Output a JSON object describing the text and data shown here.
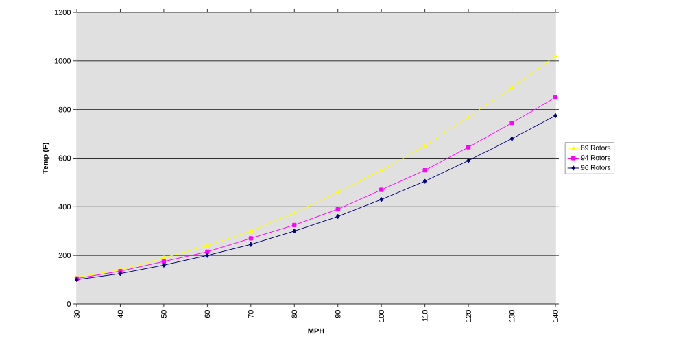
{
  "chart_data": {
    "type": "line",
    "xlabel": "MPH",
    "ylabel": "Temp (F)",
    "x": [
      30,
      40,
      50,
      60,
      70,
      80,
      90,
      100,
      110,
      120,
      130,
      140
    ],
    "xlim": [
      30,
      140
    ],
    "xticks": [
      30,
      40,
      50,
      60,
      70,
      80,
      90,
      100,
      110,
      120,
      130,
      140
    ],
    "ylim": [
      0,
      1200
    ],
    "yticks": [
      0,
      200,
      400,
      600,
      800,
      1000,
      1200
    ],
    "grid": "y",
    "legend": "right",
    "series": [
      {
        "name": "89 Rotors",
        "color": "#ffff00",
        "marker": "triangle",
        "values": [
          110,
          140,
          190,
          240,
          300,
          375,
          460,
          550,
          650,
          770,
          890,
          1020
        ]
      },
      {
        "name": "94 Rotors",
        "color": "#ff00ff",
        "marker": "square",
        "values": [
          105,
          135,
          175,
          215,
          270,
          325,
          390,
          470,
          550,
          645,
          745,
          850
        ]
      },
      {
        "name": "96 Rotors",
        "color": "#000080",
        "marker": "diamond",
        "values": [
          100,
          125,
          160,
          200,
          245,
          300,
          360,
          430,
          505,
          590,
          680,
          775
        ]
      }
    ]
  }
}
